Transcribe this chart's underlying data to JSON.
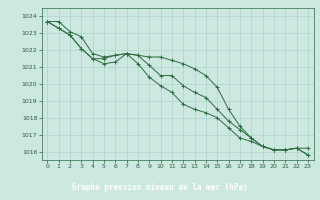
{
  "title": "Graphe pression niveau de la mer (hPa)",
  "hours": [
    0,
    1,
    2,
    3,
    4,
    5,
    6,
    7,
    8,
    9,
    10,
    11,
    12,
    13,
    14,
    15,
    16,
    17,
    18,
    19,
    20,
    21,
    22,
    23
  ],
  "line1": [
    1023.7,
    1023.7,
    1023.1,
    1022.8,
    1021.8,
    1021.6,
    1021.7,
    1021.8,
    1021.7,
    1021.6,
    1021.6,
    1021.4,
    1021.2,
    1020.9,
    1020.5,
    1019.8,
    1018.5,
    1017.5,
    1016.8,
    1016.3,
    1016.1,
    1016.1,
    1016.2,
    1015.8
  ],
  "line2": [
    1023.7,
    1023.3,
    1022.9,
    1022.1,
    1021.5,
    1021.5,
    1021.7,
    1021.8,
    1021.7,
    1021.1,
    1020.5,
    1020.5,
    1019.9,
    1019.5,
    1019.2,
    1018.5,
    1017.8,
    1017.3,
    1016.8,
    1016.3,
    1016.1,
    1016.1,
    1016.2,
    1016.2
  ],
  "line3": [
    1023.7,
    1023.3,
    1022.9,
    1022.1,
    1021.5,
    1021.2,
    1021.3,
    1021.8,
    1021.2,
    1020.4,
    1019.9,
    1019.5,
    1018.8,
    1018.5,
    1018.3,
    1018.0,
    1017.4,
    1016.8,
    1016.6,
    1016.3,
    1016.1,
    1016.1,
    1016.2,
    1015.8
  ],
  "ylim_min": 1015.5,
  "ylim_max": 1024.5,
  "yticks": [
    1016,
    1017,
    1018,
    1019,
    1020,
    1021,
    1022,
    1023,
    1024
  ],
  "bg_color": "#cce8e0",
  "grid_color": "#aad4cc",
  "line_color": "#2d6b40",
  "label_color": "#2d5a3d",
  "title_bg": "#336644",
  "title_fg": "#ffffff"
}
